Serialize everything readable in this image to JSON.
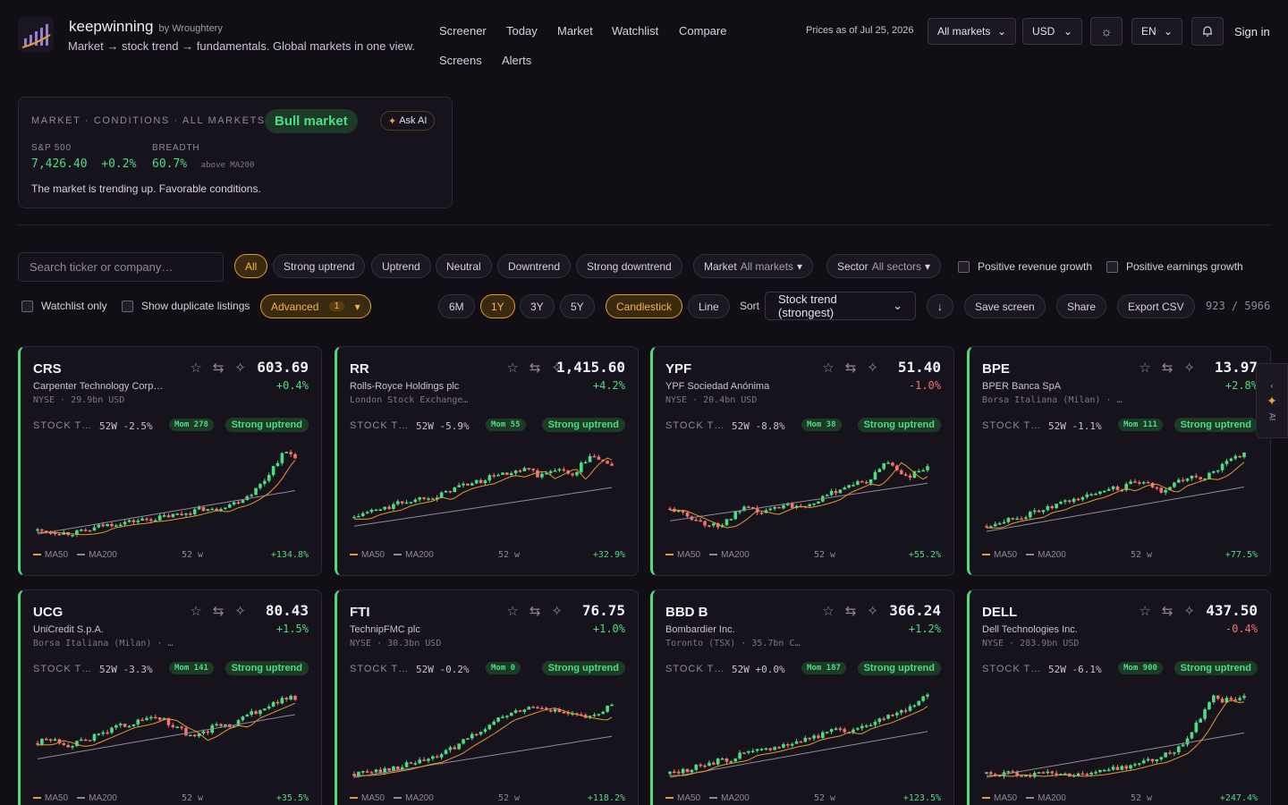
{
  "header": {
    "brand": "keepwinning",
    "by": "by Wroughtery",
    "tagline": "Market → stock trend → fundamentals. Global markets in one view.",
    "nav": [
      "Screener",
      "Today",
      "Market",
      "Watchlist",
      "Compare",
      "Screens",
      "Alerts"
    ],
    "prices_asof": "Prices as of Jul 25, 2026",
    "market_select": "All markets",
    "currency_select": "USD",
    "lang_select": "EN",
    "signin": "Sign in"
  },
  "market": {
    "title": "MARKET · CONDITIONS · ALL MARKETS",
    "status": "Bull market",
    "ask_ai": "Ask AI",
    "sp_label": "S&P 500",
    "sp_value": "7,426.40",
    "sp_change": "+0.2%",
    "breadth_label": "BREADTH",
    "breadth_value": "60.7%",
    "breadth_note": "above MA200",
    "description": "The market is trending up. Favorable conditions."
  },
  "filters": {
    "search_placeholder": "Search ticker or company…",
    "trend_pills": [
      "All",
      "Strong uptrend",
      "Uptrend",
      "Neutral",
      "Downtrend",
      "Strong downtrend"
    ],
    "market_label": "Market",
    "market_value": "All markets",
    "sector_label": "Sector",
    "sector_value": "All sectors",
    "pos_revenue": "Positive revenue growth",
    "pos_earnings": "Positive earnings growth",
    "watchlist_only": "Watchlist only",
    "show_duplicates": "Show duplicate listings",
    "advanced": "Advanced",
    "advanced_count": "1",
    "ranges": [
      "6M",
      "1Y",
      "3Y",
      "5Y"
    ],
    "chart_candlestick": "Candlestick",
    "chart_line": "Line",
    "sort_label": "Sort",
    "sort_value": "Stock trend (strongest)",
    "save_screen": "Save screen",
    "share": "Share",
    "export_csv": "Export CSV",
    "count": "923 / 5966"
  },
  "card_labels": {
    "stock_trend": "STOCK TREND",
    "ma50": "MA50",
    "ma200": "MA200",
    "weeks": "52 w"
  },
  "stocks": [
    {
      "ticker": "CRS",
      "name": "Carpenter Technology Corp…",
      "exchange": "NYSE · 29.9bn USD",
      "price": "603.69",
      "change": "+0.4%",
      "w52": "52W -2.5%",
      "mom": "Mom 278",
      "trend": "Strong uptrend",
      "total": "+134.8%"
    },
    {
      "ticker": "RR",
      "name": "Rolls-Royce Holdings plc",
      "exchange": "London Stock Exchange…",
      "price": "1,415.60",
      "change": "+4.2%",
      "w52": "52W -5.9%",
      "mom": "Mom 55",
      "trend": "Strong uptrend",
      "total": "+32.9%"
    },
    {
      "ticker": "YPF",
      "name": "YPF Sociedad Anónima",
      "exchange": "NYSE · 20.4bn USD",
      "price": "51.40",
      "change": "-1.0%",
      "w52": "52W -8.8%",
      "mom": "Mom 38",
      "trend": "Strong uptrend",
      "total": "+55.2%"
    },
    {
      "ticker": "BPE",
      "name": "BPER Banca SpA",
      "exchange": "Borsa Italiana (Milan) · …",
      "price": "13.97",
      "change": "+2.8%",
      "w52": "52W -1.1%",
      "mom": "Mom 111",
      "trend": "Strong uptrend",
      "total": "+77.5%"
    },
    {
      "ticker": "UCG",
      "name": "UniCredit S.p.A.",
      "exchange": "Borsa Italiana (Milan) · …",
      "price": "80.43",
      "change": "+1.5%",
      "w52": "52W -3.3%",
      "mom": "Mom 141",
      "trend": "Strong uptrend",
      "total": "+35.5%"
    },
    {
      "ticker": "FTI",
      "name": "TechnipFMC plc",
      "exchange": "NYSE · 30.3bn USD",
      "price": "76.75",
      "change": "+1.0%",
      "w52": "52W -0.2%",
      "mom": "Mom 0",
      "trend": "Strong uptrend",
      "total": "+118.2%"
    },
    {
      "ticker": "BBD B",
      "name": "Bombardier Inc.",
      "exchange": "Toronto (TSX) · 35.7bn C…",
      "price": "366.24",
      "change": "+1.2%",
      "w52": "52W +0.0%",
      "mom": "Mom 187",
      "trend": "Strong uptrend",
      "total": "+123.5%"
    },
    {
      "ticker": "DELL",
      "name": "Dell Technologies Inc.",
      "exchange": "NYSE · 283.9bn USD",
      "price": "437.50",
      "change": "-0.4%",
      "w52": "52W -6.1%",
      "mom": "Mom 900",
      "trend": "Strong uptrend",
      "total": "+247.4%"
    }
  ],
  "ai_tab": "AI",
  "colors": {
    "accent": "#e39b2d",
    "up": "#4ade80",
    "down": "#f87171",
    "ma50": "#e39b2d",
    "ma200": "#8f8998"
  }
}
